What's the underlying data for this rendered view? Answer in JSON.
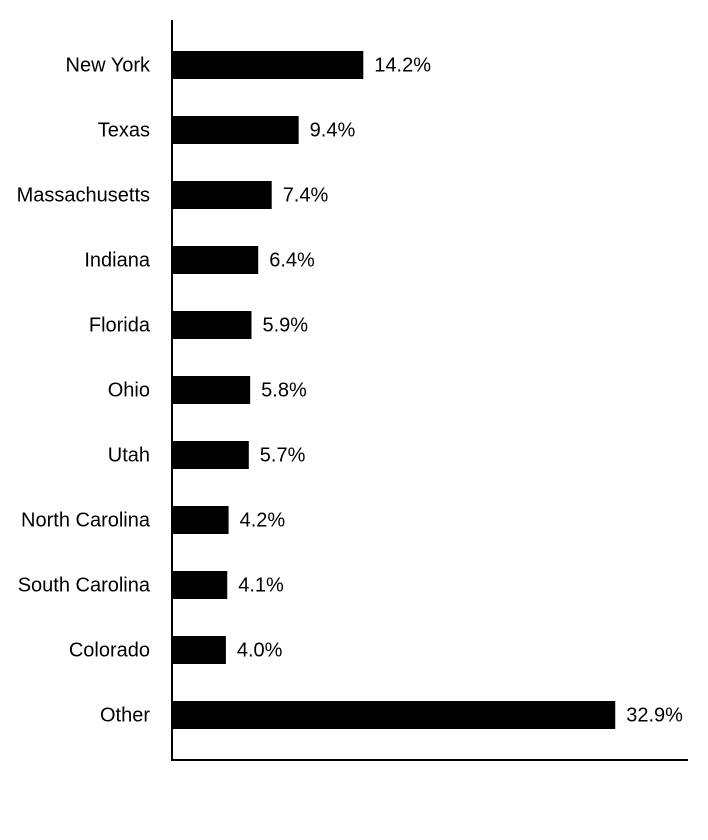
{
  "chart_data": {
    "type": "bar",
    "orientation": "horizontal",
    "categories": [
      "New York",
      "Texas",
      "Massachusetts",
      "Indiana",
      "Florida",
      "Ohio",
      "Utah",
      "North Carolina",
      "South Carolina",
      "Colorado",
      "Other"
    ],
    "values": [
      14.2,
      9.4,
      7.4,
      6.4,
      5.9,
      5.8,
      5.7,
      4.2,
      4.1,
      4.0,
      32.9
    ],
    "value_labels": [
      "14.2%",
      "9.4%",
      "7.4%",
      "6.4%",
      "5.9%",
      "5.8%",
      "5.7%",
      "4.2%",
      "4.1%",
      "4.0%",
      "32.9%"
    ],
    "color": "#000000",
    "xlim": [
      0,
      38.3
    ]
  }
}
